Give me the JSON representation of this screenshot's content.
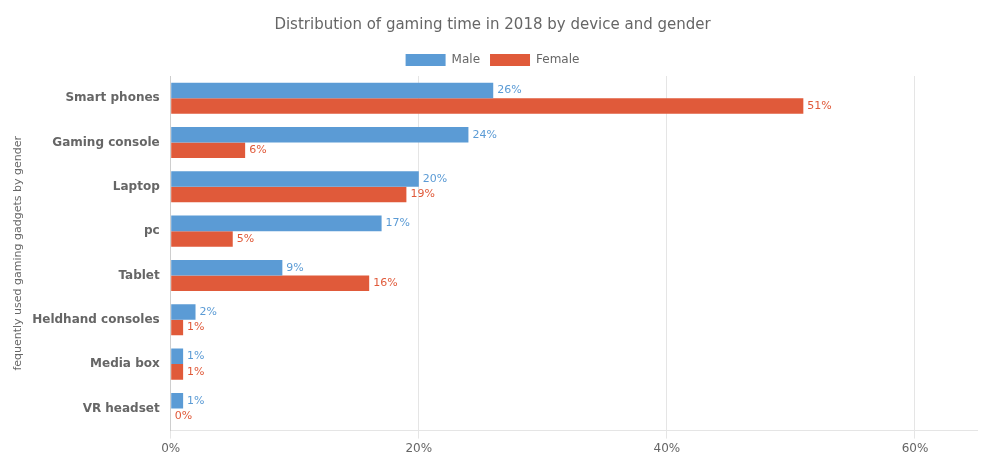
{
  "chart_data": {
    "type": "bar",
    "orientation": "horizontal",
    "title": "Distribution of gaming time in 2018 by device and gender",
    "ylabel": "fequently used gaming gadgets by gender",
    "categories": [
      "Smart phones",
      "Gaming console",
      "Laptop",
      "pc",
      "Tablet",
      "Heldhand consoles",
      "Media box",
      "VR headset"
    ],
    "series": [
      {
        "name": "Male",
        "color": "#5b9bd5",
        "values": [
          26,
          24,
          20,
          17,
          9,
          2,
          1,
          1
        ],
        "value_labels": [
          "26%",
          "24%",
          "20%",
          "17%",
          "9%",
          "2%",
          "1%",
          "1%"
        ]
      },
      {
        "name": "Female",
        "color": "#e05a3a",
        "values": [
          51,
          6,
          19,
          5,
          16,
          1,
          1,
          0
        ],
        "value_labels": [
          "51%",
          "6%",
          "19%",
          "5%",
          "16%",
          "1%",
          "1%",
          "0%"
        ]
      }
    ],
    "xlim": [
      0,
      65
    ],
    "xticks": [
      {
        "value": 0,
        "label": "0%"
      },
      {
        "value": 20,
        "label": "20%"
      },
      {
        "value": 40,
        "label": "40%"
      },
      {
        "value": 60,
        "label": "60%"
      }
    ],
    "grid": "x",
    "legend": "top",
    "data_labels": true
  }
}
